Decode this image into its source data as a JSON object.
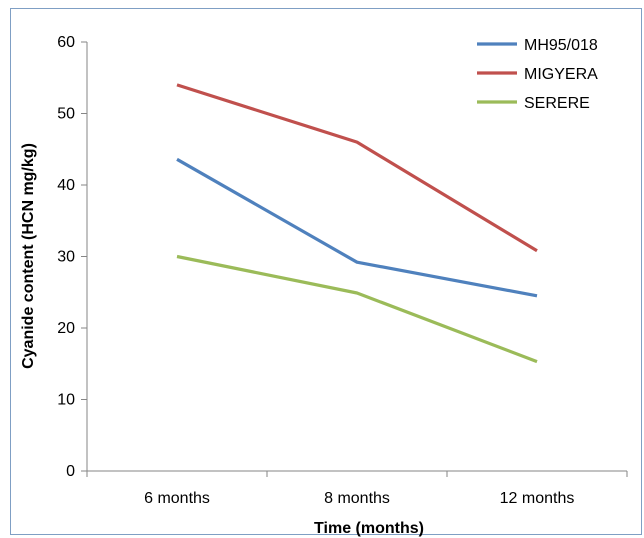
{
  "chart_data": {
    "type": "line",
    "title": "",
    "xlabel": "Time (months)",
    "ylabel": "Cyanide content (HCN mg/kg)",
    "categories": [
      "6 months",
      "8 months",
      "12 months"
    ],
    "y_ticks": [
      "0",
      "10",
      "20",
      "30",
      "40",
      "50",
      "60"
    ],
    "ylim": [
      0,
      60
    ],
    "grid": false,
    "legend": "top-right",
    "series": [
      {
        "name": "MH95/018",
        "color": "#4f81bd",
        "values": [
          43.6,
          29.2,
          24.5
        ]
      },
      {
        "name": "MIGYERA",
        "color": "#c0504d",
        "values": [
          54.0,
          46.0,
          30.8
        ]
      },
      {
        "name": "SERERE",
        "color": "#9bbb59",
        "values": [
          30.0,
          24.9,
          15.3
        ]
      }
    ]
  }
}
